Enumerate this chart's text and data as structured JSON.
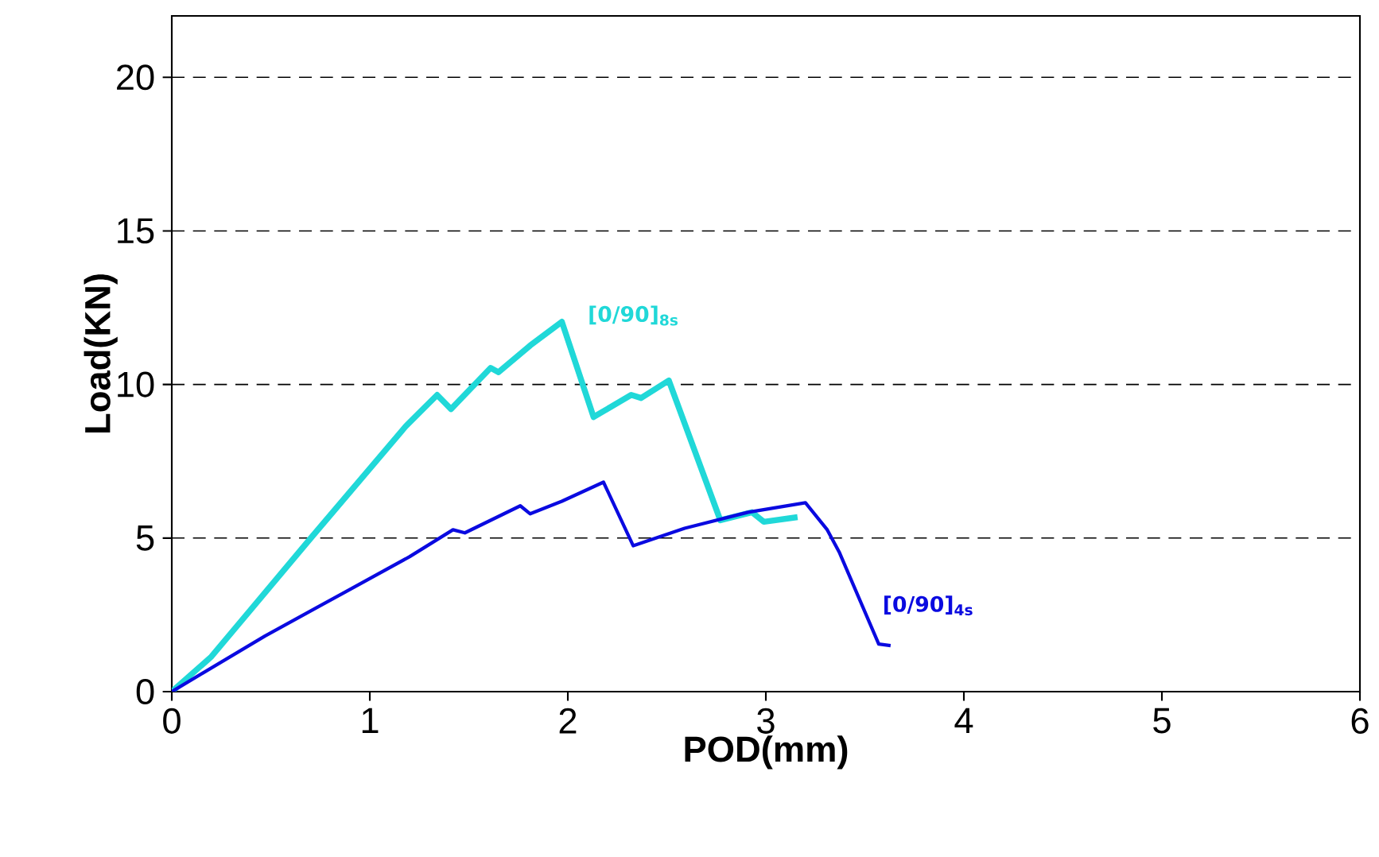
{
  "chart_data": {
    "type": "line",
    "xlabel": "POD(mm)",
    "ylabel": "Load(KN)",
    "xlim": [
      0,
      6
    ],
    "xticks": [
      0,
      1,
      2,
      3,
      4,
      5,
      6
    ],
    "ylim": [
      0,
      22
    ],
    "yticks": [
      0,
      5,
      10,
      15,
      20
    ],
    "grid": "y",
    "marker": "none",
    "line_style": "solid",
    "series": [
      {
        "name": "[0/90]$_{8s}$",
        "color": "#20d8d8",
        "x": [
          0,
          0.2,
          0.71,
          1.18,
          1.34,
          1.41,
          1.61,
          1.65,
          1.81,
          1.97,
          2.13,
          2.32,
          2.37,
          2.51,
          2.77,
          2.93,
          2.99,
          3.16
        ],
        "values": [
          0,
          1.14,
          5.06,
          8.63,
          9.66,
          9.2,
          10.54,
          10.4,
          11.27,
          12.04,
          8.94,
          9.66,
          9.56,
          10.13,
          5.58,
          5.84,
          5.53,
          5.68
        ]
      },
      {
        "name": "[0/90]$_{4s}$",
        "color": "#0a0ae0",
        "x": [
          0,
          0.47,
          0.88,
          1.2,
          1.42,
          1.48,
          1.76,
          1.81,
          1.97,
          2.18,
          2.33,
          2.59,
          2.91,
          3.2,
          3.31,
          3.37,
          3.57,
          3.63
        ],
        "values": [
          0,
          1.81,
          3.26,
          4.39,
          5.27,
          5.17,
          6.05,
          5.79,
          6.2,
          6.82,
          4.75,
          5.32,
          5.84,
          6.15,
          5.27,
          4.55,
          1.55,
          1.5
        ]
      }
    ]
  }
}
